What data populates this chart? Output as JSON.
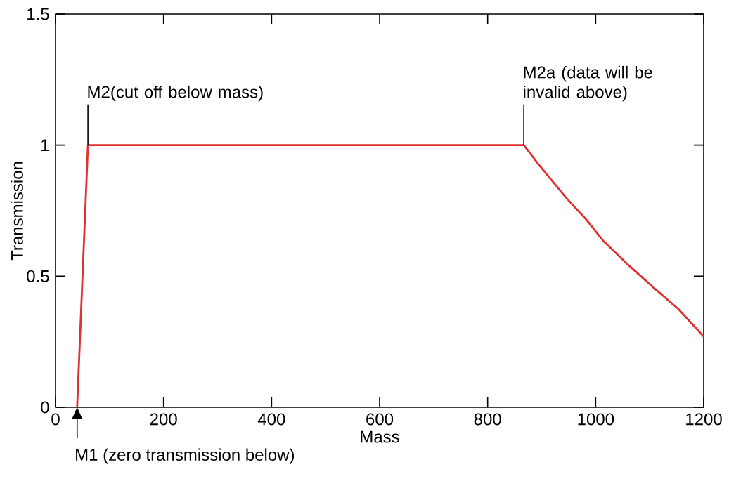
{
  "chart_data": {
    "type": "line",
    "xlabel": "Mass",
    "ylabel": "Transmission",
    "x": [
      40,
      60,
      867,
      893,
      945,
      981,
      1014,
      1062,
      1108,
      1153,
      1200
    ],
    "series": [
      {
        "color": "#e03030",
        "values": [
          0,
          1.0,
          1.0,
          0.93,
          0.8,
          0.72,
          0.635,
          0.54,
          0.455,
          0.375,
          0.27
        ]
      }
    ],
    "xlim": [
      0,
      1200
    ],
    "xticks": [
      0,
      200,
      400,
      600,
      800,
      1000,
      1200
    ],
    "ylim": [
      0,
      1.5
    ],
    "yticks": [
      0,
      0.5,
      1,
      1.5
    ],
    "annotations": [
      {
        "text": "M1 (zero transmission below)",
        "x": 40,
        "y": 0
      },
      {
        "text": "M2(cut off below mass)",
        "x": 60,
        "y": 1
      },
      {
        "text": "M2a (data will be invalid above)",
        "x": 867,
        "y": 1
      }
    ],
    "grid": false,
    "marker": "none",
    "line_style": "solid"
  }
}
